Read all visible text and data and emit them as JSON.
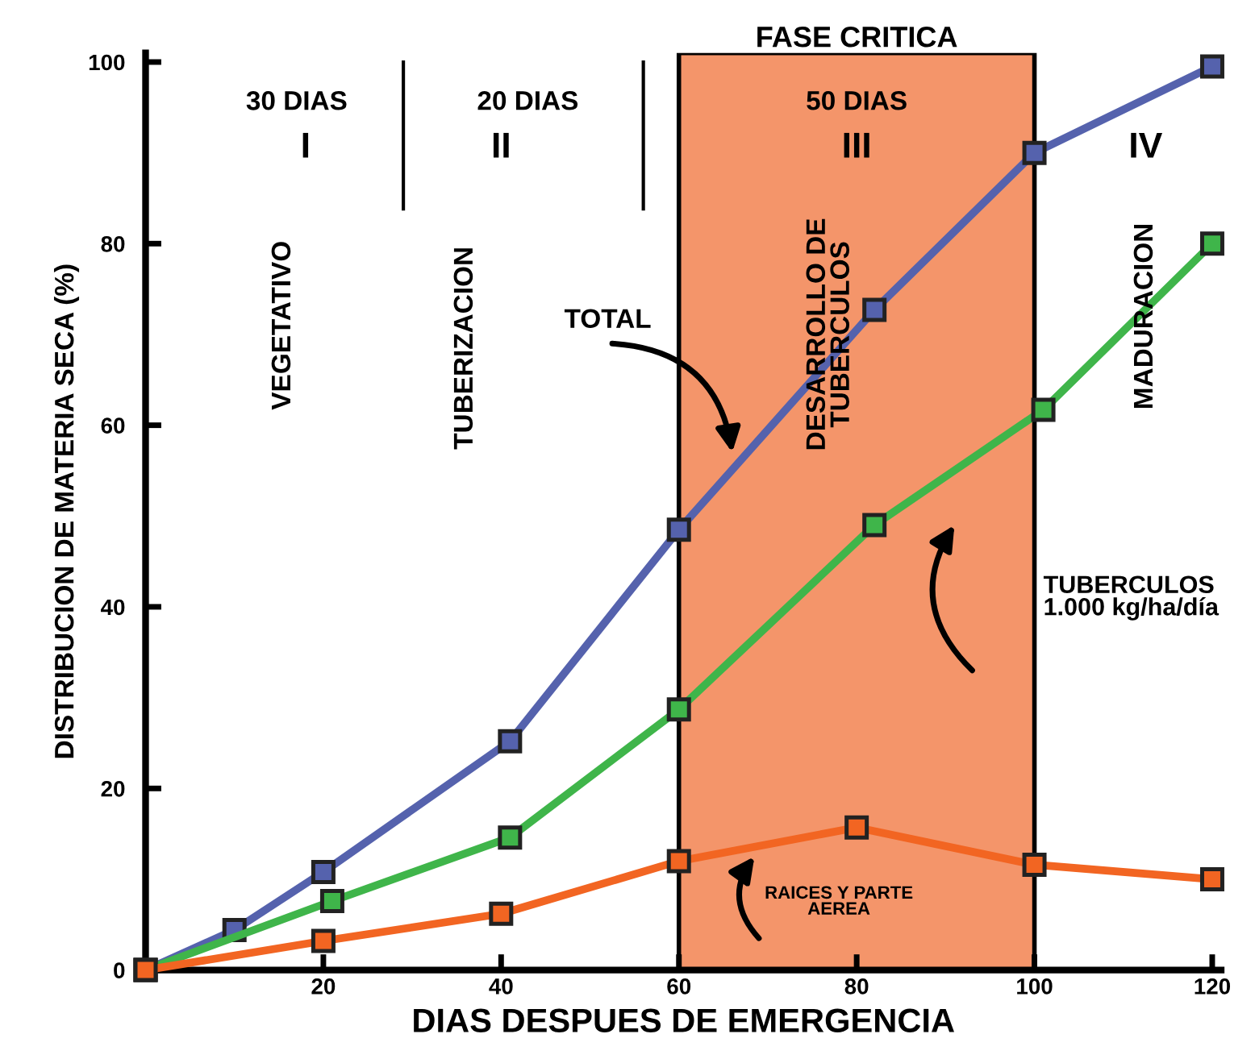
{
  "chart_data": {
    "type": "line",
    "xlabel": "DIAS DESPUES DE EMERGENCIA",
    "ylabel": "DISTRIBUCION DE MATERIA SECA (%)",
    "xlim": [
      0,
      121
    ],
    "ylim": [
      0,
      101
    ],
    "xticks": [
      20,
      40,
      60,
      80,
      100,
      120
    ],
    "yticks": [
      0,
      20,
      40,
      60,
      80,
      100
    ],
    "marker": "square",
    "line_style": "solid",
    "grid": false,
    "series": [
      {
        "color": "#5562ad",
        "x": [
          0,
          10,
          20,
          41,
          60,
          82,
          100,
          120
        ],
        "values": [
          0,
          4.4,
          10.8,
          25.2,
          48.5,
          72.7,
          90,
          99.5
        ]
      },
      {
        "color": "#3fb54a",
        "x": [
          0,
          21,
          41,
          60,
          82,
          101,
          120
        ],
        "values": [
          0,
          7.6,
          14.6,
          28.7,
          49,
          61.7,
          80
        ]
      },
      {
        "color": "#f26522",
        "x": [
          0,
          20,
          40,
          60,
          80,
          100,
          120
        ],
        "values": [
          0,
          3.2,
          6.2,
          12,
          15.7,
          11.6,
          10
        ]
      }
    ],
    "bands": [
      {
        "axis": "x",
        "from": 60,
        "to": 100,
        "label": "FASE CRITICA",
        "color": "#f4956a"
      }
    ],
    "ref_lines": [
      {
        "axis": "x",
        "value": 29
      },
      {
        "axis": "x",
        "value": 56
      }
    ],
    "annotations": [
      "TOTAL",
      "TUBERCULOS\n1.000 kg/ha/día",
      "RAICES Y PARTE\nAEREA",
      "30 DIAS",
      "20 DIAS",
      "50 DIAS",
      "I",
      "II",
      "III",
      "IV",
      "VEGETATIVO",
      "TUBERIZACION",
      "DESARROLLO DE\nTUBERCULOS",
      "MADURACION"
    ]
  }
}
